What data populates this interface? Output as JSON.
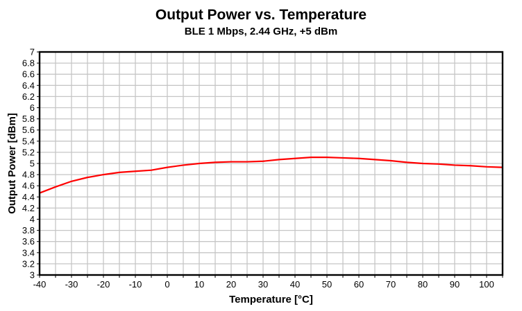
{
  "chart": {
    "title": "Output Power vs. Temperature",
    "subtitle": "BLE 1 Mbps, 2.44 GHz, +5 dBm",
    "xlabel": "Temperature [°C]",
    "ylabel": "Output Power [dBm]"
  },
  "chart_data": {
    "type": "line",
    "title": "Output Power vs. Temperature",
    "subtitle": "BLE 1 Mbps, 2.44 GHz, +5 dBm",
    "xlabel": "Temperature [°C]",
    "ylabel": "Output Power [dBm]",
    "x": [
      -40,
      -35,
      -30,
      -25,
      -20,
      -15,
      -10,
      -5,
      0,
      5,
      10,
      15,
      20,
      25,
      30,
      35,
      40,
      45,
      50,
      55,
      60,
      65,
      70,
      75,
      80,
      85,
      90,
      95,
      100,
      105
    ],
    "series": [
      {
        "name": "Output Power",
        "values": [
          4.47,
          4.58,
          4.68,
          4.75,
          4.8,
          4.84,
          4.86,
          4.88,
          4.93,
          4.97,
          5.0,
          5.02,
          5.03,
          5.03,
          5.04,
          5.07,
          5.09,
          5.11,
          5.11,
          5.1,
          5.09,
          5.07,
          5.05,
          5.02,
          5.0,
          4.99,
          4.97,
          4.96,
          4.94,
          4.93
        ]
      }
    ],
    "xlim": [
      -40,
      105
    ],
    "ylim": [
      3,
      7
    ],
    "x_label_step": 10,
    "x_label_max": 100,
    "x_grid_step": 5,
    "y_label_step": 0.2,
    "y_grid_step": 0.2,
    "grid": true,
    "legend_position": "none",
    "colors": {
      "line": "#ff0000",
      "grid": "#c6c6c6",
      "axis": "#000000",
      "text": "#000000",
      "background": "#ffffff"
    }
  }
}
